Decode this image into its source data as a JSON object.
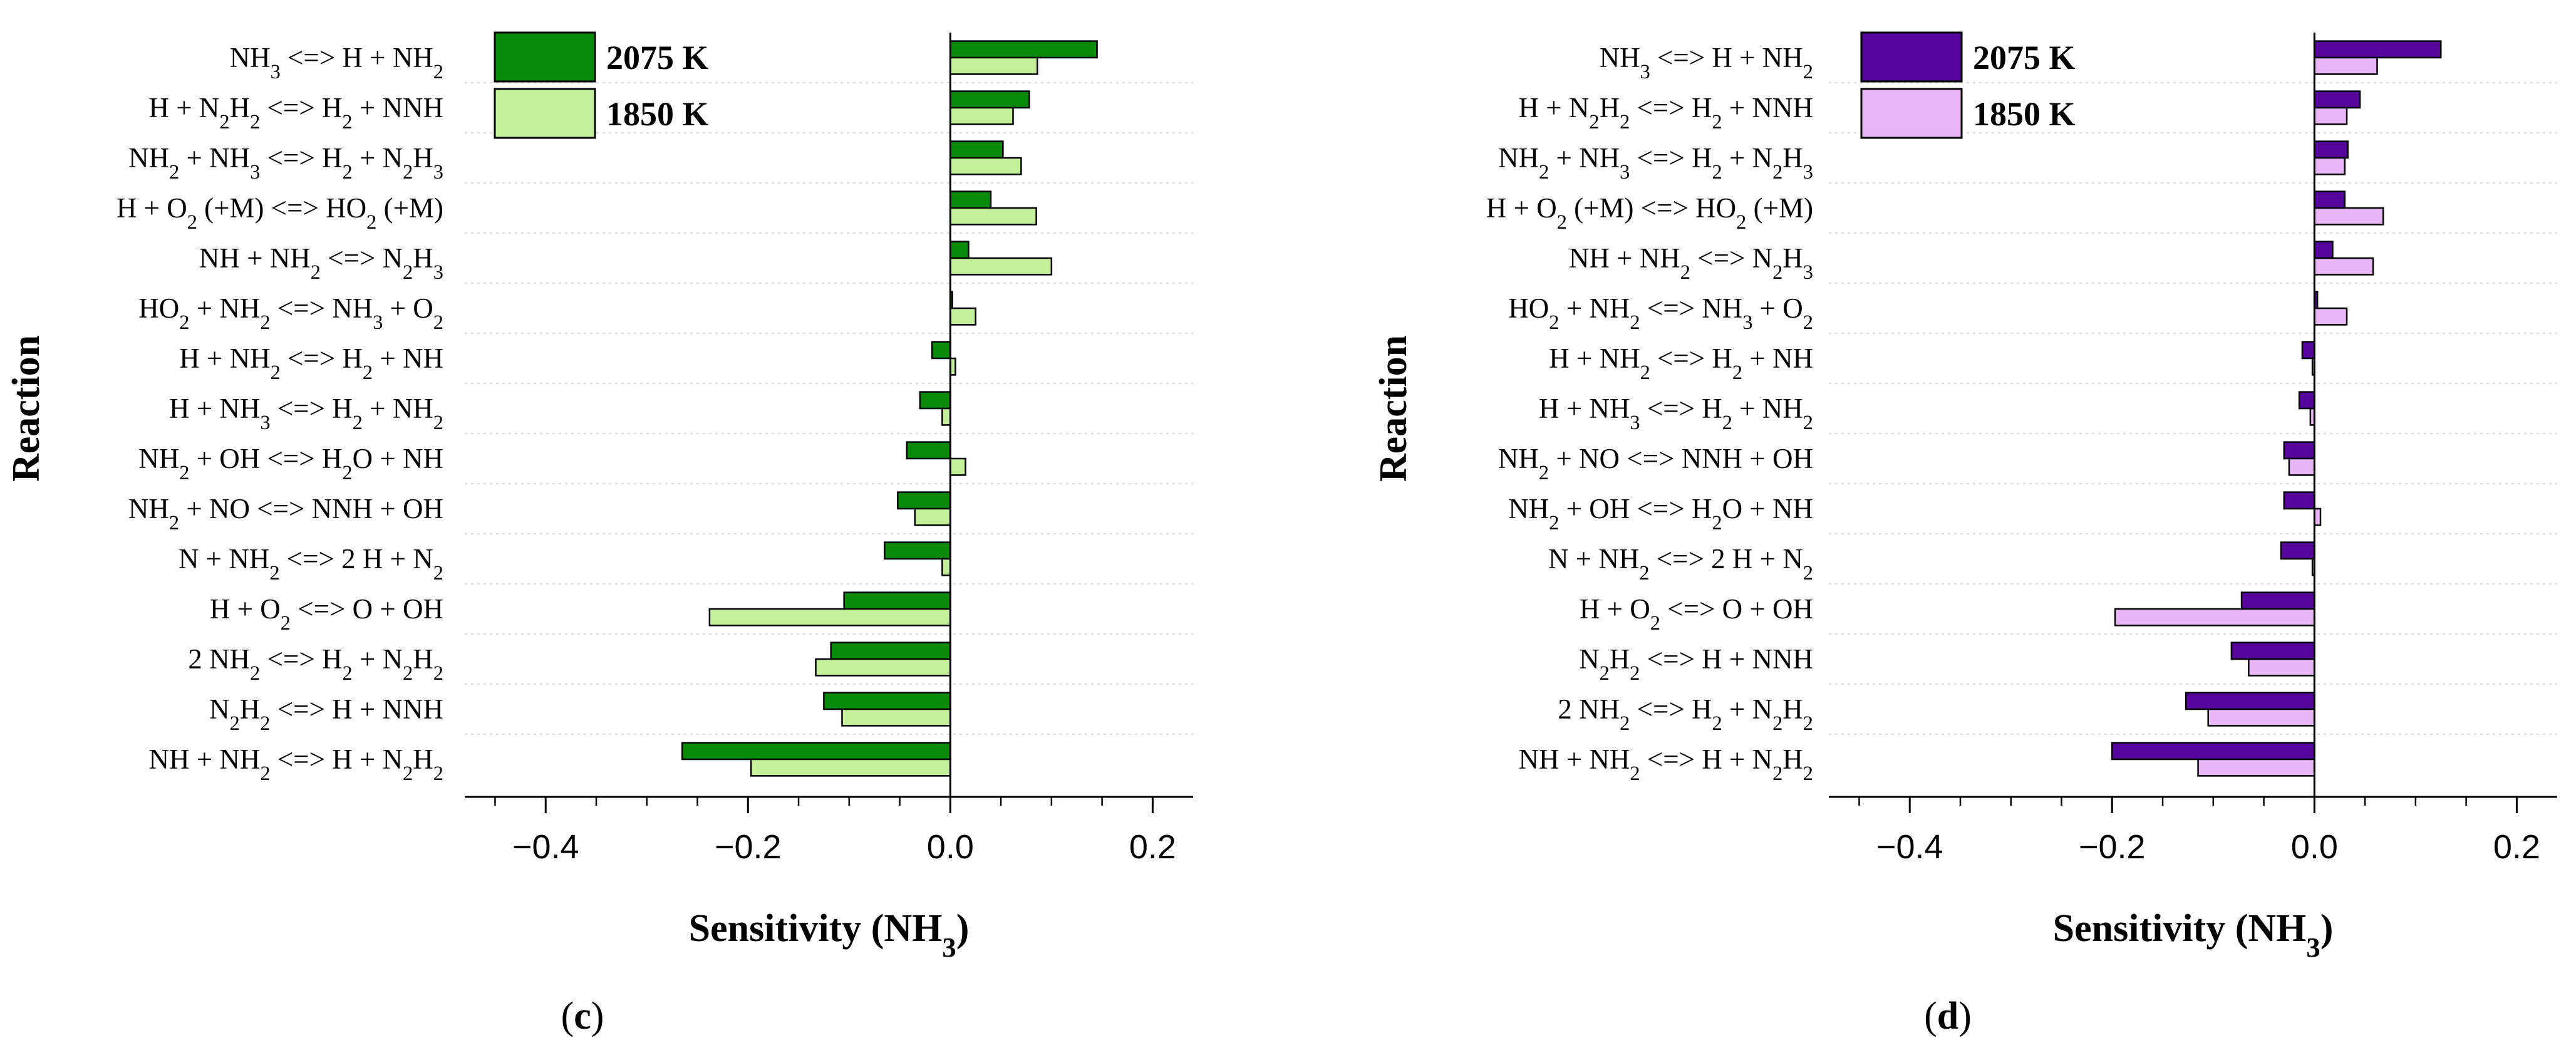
{
  "chart_data": [
    {
      "panel_label": "c",
      "type": "bar",
      "orientation": "horizontal",
      "xlabel": "Sensitivity (NH3)",
      "ylabel": "Reaction",
      "xlim": [
        -0.48,
        0.24
      ],
      "xticks": [
        "−0.4",
        "−0.2",
        "0.0",
        "0.2"
      ],
      "xtick_values": [
        -0.4,
        -0.2,
        0.0,
        0.2
      ],
      "legend_position": "top-left",
      "categories": [
        "NH3 <=> H + NH2",
        "H + N2H2 <=> H2 + NNH",
        "NH2 + NH3 <=> H2 + N2H3",
        "H + O2 (+M) <=> HO2 (+M)",
        "NH + NH2 <=> N2H3",
        "HO2 + NH2 <=> NH3 + O2",
        "H + NH2 <=> H2 + NH",
        "H + NH3 <=> H2 + NH2",
        "NH2 + OH <=> H2O + NH",
        "NH2 + NO <=> NNH + OH",
        "N + NH2 <=> 2 H + N2",
        "H + O2 <=> O + OH",
        "2 NH2 <=> H2 + N2H2",
        "N2H2 <=> H + NNH",
        "NH + NH2 <=> H + N2H2"
      ],
      "series": [
        {
          "name": "2075 K",
          "color": "#0a8a0a",
          "values": [
            0.145,
            0.078,
            0.052,
            0.04,
            0.018,
            0.002,
            -0.018,
            -0.03,
            -0.043,
            -0.052,
            -0.065,
            -0.105,
            -0.118,
            -0.125,
            -0.265
          ]
        },
        {
          "name": "1850 K",
          "color": "#c5ef9a",
          "values": [
            0.086,
            0.062,
            0.07,
            0.085,
            0.1,
            0.025,
            0.005,
            -0.008,
            0.015,
            -0.035,
            -0.008,
            -0.238,
            -0.133,
            -0.107,
            -0.197
          ]
        }
      ]
    },
    {
      "panel_label": "d",
      "type": "bar",
      "orientation": "horizontal",
      "xlabel": "Sensitivity (NH3)",
      "ylabel": "Reaction",
      "xlim": [
        -0.48,
        0.24
      ],
      "xticks": [
        "−0.4",
        "−0.2",
        "0.0",
        "0.2"
      ],
      "xtick_values": [
        -0.4,
        -0.2,
        0.0,
        0.2
      ],
      "legend_position": "top-left",
      "categories": [
        "NH3 <=> H + NH2",
        "H + N2H2 <=> H2 + NNH",
        "NH2 + NH3 <=> H2 + N2H3",
        "H + O2 (+M) <=> HO2 (+M)",
        "NH + NH2 <=> N2H3",
        "HO2 + NH2 <=> NH3 + O2",
        "H + NH2 <=> H2 + NH",
        "H + NH3 <=> H2 + NH2",
        "NH2 + NO <=> NNH + OH",
        "NH2 + OH <=> H2O + NH",
        "N + NH2 <=> 2 H + N2",
        "H + O2 <=> O + OH",
        "N2H2 <=> H + NNH",
        "2 NH2 <=> H2 + N2H2",
        "NH + NH2 <=> H + N2H2"
      ],
      "series": [
        {
          "name": "2075 K",
          "color": "#56069a",
          "values": [
            0.125,
            0.045,
            0.033,
            0.03,
            0.018,
            0.003,
            -0.012,
            -0.015,
            -0.03,
            -0.03,
            -0.033,
            -0.072,
            -0.082,
            -0.127,
            -0.2
          ]
        },
        {
          "name": "1850 K",
          "color": "#e9b6f8",
          "values": [
            0.062,
            0.032,
            0.03,
            0.068,
            0.058,
            0.032,
            -0.002,
            -0.004,
            -0.025,
            0.006,
            -0.002,
            -0.197,
            -0.065,
            -0.105,
            -0.115
          ]
        }
      ]
    }
  ]
}
